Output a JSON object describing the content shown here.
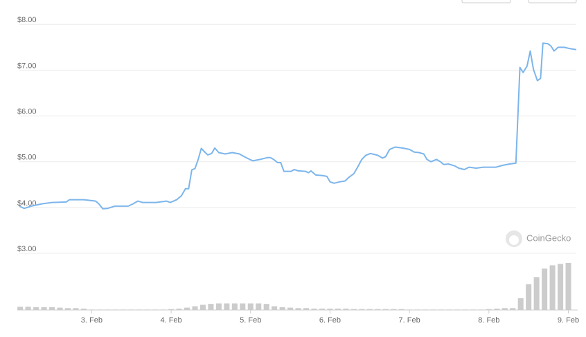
{
  "chart_data": {
    "type": "line",
    "watermark": "CoinGecko",
    "xlim": [
      2.09,
      9.1
    ],
    "xticks": [
      {
        "value": 3,
        "label": "3. Feb"
      },
      {
        "value": 4,
        "label": "4. Feb"
      },
      {
        "value": 5,
        "label": "5. Feb"
      },
      {
        "value": 6,
        "label": "6. Feb"
      },
      {
        "value": 7,
        "label": "7. Feb"
      },
      {
        "value": 8,
        "label": "8. Feb"
      },
      {
        "value": 9,
        "label": "9. Feb"
      }
    ],
    "ylim": [
      1.76,
      8.08
    ],
    "yticks": [
      {
        "value": 3,
        "label": "$3.00"
      },
      {
        "value": 4,
        "label": "$4.00"
      },
      {
        "value": 5,
        "label": "$5.00"
      },
      {
        "value": 6,
        "label": "$6.00"
      },
      {
        "value": 7,
        "label": "$7.00"
      },
      {
        "value": 8,
        "label": "$8.00"
      }
    ],
    "grid": true,
    "y2lim": [
      0,
      100
    ],
    "series": [
      {
        "color": "#7cb5ec",
        "x": [
          2.09,
          2.15,
          2.24,
          2.37,
          2.5,
          2.68,
          2.72,
          2.9,
          3.05,
          3.09,
          3.14,
          3.2,
          3.29,
          3.46,
          3.52,
          3.58,
          3.64,
          3.81,
          3.94,
          3.99,
          4.07,
          4.13,
          4.18,
          4.22,
          4.26,
          4.3,
          4.34,
          4.38,
          4.43,
          4.46,
          4.51,
          4.55,
          4.6,
          4.68,
          4.77,
          4.86,
          4.92,
          4.99,
          5.03,
          5.12,
          5.21,
          5.25,
          5.29,
          5.34,
          5.38,
          5.42,
          5.51,
          5.55,
          5.6,
          5.69,
          5.73,
          5.76,
          5.82,
          5.9,
          5.96,
          6.0,
          6.05,
          6.12,
          6.19,
          6.23,
          6.3,
          6.35,
          6.4,
          6.45,
          6.51,
          6.6,
          6.66,
          6.7,
          6.75,
          6.82,
          6.91,
          7.0,
          7.06,
          7.12,
          7.18,
          7.22,
          7.27,
          7.34,
          7.39,
          7.43,
          7.49,
          7.57,
          7.62,
          7.69,
          7.75,
          7.84,
          7.93,
          8.0,
          8.09,
          8.17,
          8.26,
          8.34,
          8.39,
          8.43,
          8.48,
          8.52,
          8.56,
          8.61,
          8.65,
          8.68,
          8.74,
          8.78,
          8.82,
          8.87,
          8.95,
          9.02,
          9.1
        ],
        "values": [
          4.03,
          3.98,
          4.03,
          4.08,
          4.11,
          4.12,
          4.17,
          4.17,
          4.14,
          4.08,
          3.97,
          3.98,
          4.03,
          4.03,
          4.08,
          4.14,
          4.11,
          4.11,
          4.14,
          4.11,
          4.17,
          4.26,
          4.41,
          4.41,
          4.82,
          4.85,
          5.05,
          5.29,
          5.2,
          5.15,
          5.18,
          5.3,
          5.2,
          5.17,
          5.2,
          5.17,
          5.11,
          5.05,
          5.02,
          5.05,
          5.09,
          5.09,
          5.05,
          4.98,
          4.98,
          4.79,
          4.79,
          4.83,
          4.8,
          4.79,
          4.76,
          4.8,
          4.71,
          4.7,
          4.68,
          4.56,
          4.53,
          4.56,
          4.58,
          4.65,
          4.74,
          4.89,
          5.05,
          5.14,
          5.18,
          5.14,
          5.08,
          5.11,
          5.27,
          5.32,
          5.3,
          5.27,
          5.21,
          5.2,
          5.17,
          5.05,
          5.0,
          5.05,
          5.0,
          4.94,
          4.95,
          4.91,
          4.86,
          4.83,
          4.88,
          4.86,
          4.88,
          4.88,
          4.88,
          4.92,
          4.95,
          4.97,
          7.06,
          6.95,
          7.09,
          7.42,
          7.02,
          6.77,
          6.82,
          7.59,
          7.58,
          7.53,
          7.42,
          7.5,
          7.5,
          7.47,
          7.45
        ]
      },
      {
        "type": "bar",
        "axis": "y2",
        "color": "#cccccc",
        "x": [
          2.1,
          2.2,
          2.3,
          2.4,
          2.5,
          2.6,
          2.7,
          2.8,
          2.9,
          3.0,
          3.1,
          3.2,
          3.3,
          3.4,
          3.5,
          3.6,
          3.7,
          3.8,
          3.9,
          4.0,
          4.1,
          4.2,
          4.3,
          4.4,
          4.5,
          4.6,
          4.7,
          4.8,
          4.9,
          5.0,
          5.1,
          5.2,
          5.3,
          5.4,
          5.5,
          5.6,
          5.7,
          5.8,
          5.9,
          6.0,
          6.1,
          6.2,
          6.3,
          6.4,
          6.5,
          6.6,
          6.7,
          6.8,
          6.9,
          7.0,
          7.1,
          7.2,
          7.3,
          7.4,
          7.5,
          7.6,
          7.7,
          7.8,
          7.9,
          8.0,
          8.1,
          8.2,
          8.3,
          8.4,
          8.5,
          8.6,
          8.7,
          8.8,
          8.9,
          9.0
        ],
        "values": [
          7,
          7,
          6,
          6,
          6,
          5,
          4,
          4,
          3,
          1,
          1,
          1,
          1,
          1,
          1,
          1,
          1,
          1,
          1,
          2,
          3,
          5,
          8,
          11,
          13,
          14,
          14,
          14,
          14,
          14,
          14,
          13,
          8,
          6,
          5,
          4,
          4,
          3,
          3,
          3,
          3,
          3,
          2,
          2,
          2,
          2,
          2,
          2,
          2,
          1,
          1,
          1,
          1,
          1,
          1,
          1,
          1,
          1,
          1,
          2,
          3,
          4,
          4,
          25,
          55,
          70,
          88,
          95,
          98,
          100
        ]
      }
    ]
  }
}
